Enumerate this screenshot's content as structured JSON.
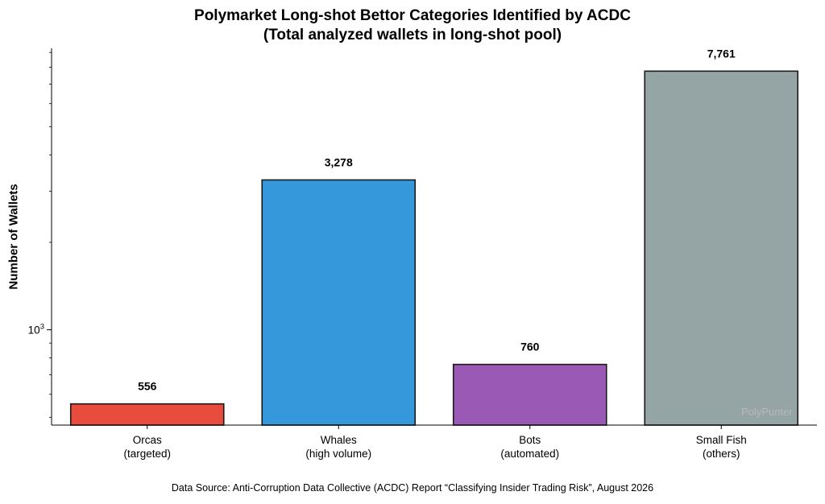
{
  "chart_data": {
    "type": "bar",
    "title_line1": "Polymarket Long-shot Bettor Categories Identified by ACDC",
    "title_line2": "(Total analyzed wallets in long-shot pool)",
    "ylabel": "Number of Wallets",
    "yscale": "log",
    "ylim": [
      470,
      9300
    ],
    "ytick_label": "10",
    "ytick_exponent": "3",
    "categories": [
      {
        "line1": "Orcas",
        "line2": "(targeted)"
      },
      {
        "line1": "Whales",
        "line2": "(high volume)"
      },
      {
        "line1": "Bots",
        "line2": "(automated)"
      },
      {
        "line1": "Small Fish",
        "line2": "(others)"
      }
    ],
    "values": [
      556,
      3278,
      760,
      7761
    ],
    "value_labels": [
      "556",
      "3,278",
      "760",
      "7,761"
    ],
    "colors": [
      "#e74c3c",
      "#3498db",
      "#9b59b6",
      "#95a5a6"
    ],
    "grid": false,
    "source": "Data Source: Anti-Corruption Data Collective (ACDC) Report “Classifying Insider Trading Risk”, August 2026",
    "watermark": "PolyPunter"
  }
}
